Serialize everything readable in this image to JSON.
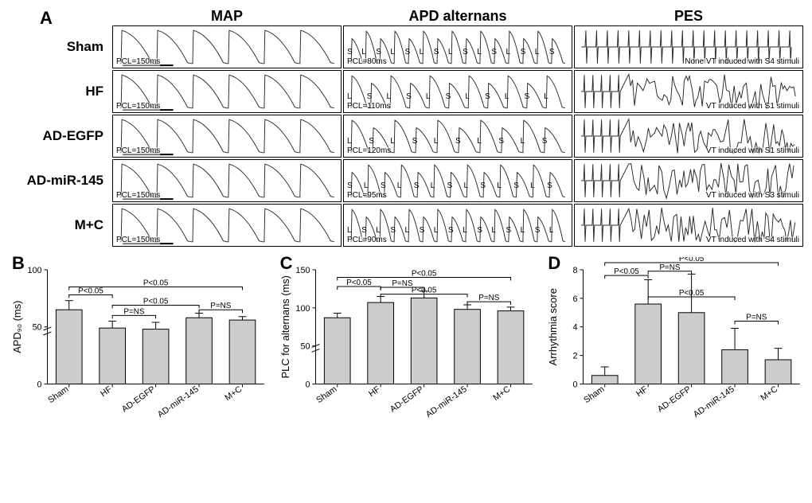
{
  "panelA": {
    "label": "A",
    "columns": [
      "MAP",
      "APD alternans",
      "PES"
    ],
    "rows": [
      {
        "label": "Sham",
        "map_pcl": "PCL=150ms",
        "alt_pcl": "PCL=80ms",
        "alt_pattern": "SLSLSLSLSLSLSLS",
        "pes": "None VT induced with S4 stimuli"
      },
      {
        "label": "HF",
        "map_pcl": "PCL=150ms",
        "alt_pcl": "PCL=110ms",
        "alt_pattern": "LSLSLSLSLSL",
        "pes": "VT induced with S1 stimuli"
      },
      {
        "label": "AD-EGFP",
        "map_pcl": "PCL=150ms",
        "alt_pcl": "PCL=120ms",
        "alt_pattern": "LSLSLSLSLS",
        "pes": "VT induced with S1 stimuli"
      },
      {
        "label": "AD-miR-145",
        "map_pcl": "PCL=150ms",
        "alt_pcl": "PCL=95ms",
        "alt_pattern": "SLSLSLSLSLSLS",
        "pes": "VT induced with S3 stimuli"
      },
      {
        "label": "M+C",
        "map_pcl": "PCL=150ms",
        "alt_pcl": "PCL=90ms",
        "alt_pattern": "LSLSLSLSLSLSLSL",
        "pes": "VT induced with S4 stimuli"
      }
    ],
    "trace_color": "#2a2a2a",
    "box_stroke": "#000000"
  },
  "panelB": {
    "label": "B",
    "ylabel": "APD₉₀ (ms)",
    "ylim": [
      0,
      100
    ],
    "yticks": [
      0,
      50,
      100
    ],
    "break_at": 45,
    "categories": [
      "Sham",
      "HF",
      "AD-EGFP",
      "AD-miR-145",
      "M+C"
    ],
    "values": [
      65,
      49,
      48,
      58,
      56
    ],
    "errors": [
      8,
      6,
      6,
      4,
      3
    ],
    "bar_color": "#cccccc",
    "sigs": [
      {
        "from": 0,
        "to": 1,
        "text": "P<0.05",
        "y": 78
      },
      {
        "from": 1,
        "to": 2,
        "text": "P=NS",
        "y": 60
      },
      {
        "from": 1,
        "to": 3,
        "text": "P<0.05",
        "y": 69
      },
      {
        "from": 0,
        "to": 4,
        "text": "P<0.05",
        "y": 85
      },
      {
        "from": 3,
        "to": 4,
        "text": "P=NS",
        "y": 65
      }
    ]
  },
  "panelC": {
    "label": "C",
    "ylabel": "PLC for alternans (ms)",
    "ylim": [
      0,
      150
    ],
    "yticks": [
      0,
      50,
      100,
      150
    ],
    "break_at": 45,
    "categories": [
      "Sham",
      "HF",
      "AD-EGFP",
      "AD-miR-145",
      "M+C"
    ],
    "values": [
      87,
      107,
      113,
      98,
      96
    ],
    "errors": [
      6,
      8,
      9,
      6,
      5
    ],
    "bar_color": "#cccccc",
    "sigs": [
      {
        "from": 0,
        "to": 1,
        "text": "P<0.05",
        "y": 128
      },
      {
        "from": 1,
        "to": 2,
        "text": "P=NS",
        "y": 127
      },
      {
        "from": 1,
        "to": 3,
        "text": "P<0.05",
        "y": 118
      },
      {
        "from": 0,
        "to": 4,
        "text": "P<0.05",
        "y": 140
      },
      {
        "from": 3,
        "to": 4,
        "text": "P=NS",
        "y": 108
      }
    ]
  },
  "panelD": {
    "label": "D",
    "ylabel": "Arrhythmia score",
    "ylim": [
      0,
      8
    ],
    "yticks": [
      0,
      2,
      4,
      6,
      8
    ],
    "categories": [
      "Sham",
      "HF",
      "AD-EGFP",
      "AD-miR-145",
      "M+C"
    ],
    "values": [
      0.6,
      5.6,
      5.0,
      2.4,
      1.7
    ],
    "errors": [
      0.6,
      1.7,
      2.7,
      1.5,
      0.8
    ],
    "bar_color": "#cccccc",
    "sigs": [
      {
        "from": 0,
        "to": 1,
        "text": "P<0.05",
        "y": 7.6
      },
      {
        "from": 1,
        "to": 2,
        "text": "P=NS",
        "y": 7.9
      },
      {
        "from": 1,
        "to": 3,
        "text": "P<0.05",
        "y": 6.1
      },
      {
        "from": 0,
        "to": 4,
        "text": "P<0.05",
        "y": 8.5
      },
      {
        "from": 3,
        "to": 4,
        "text": "P=NS",
        "y": 4.4
      }
    ]
  }
}
